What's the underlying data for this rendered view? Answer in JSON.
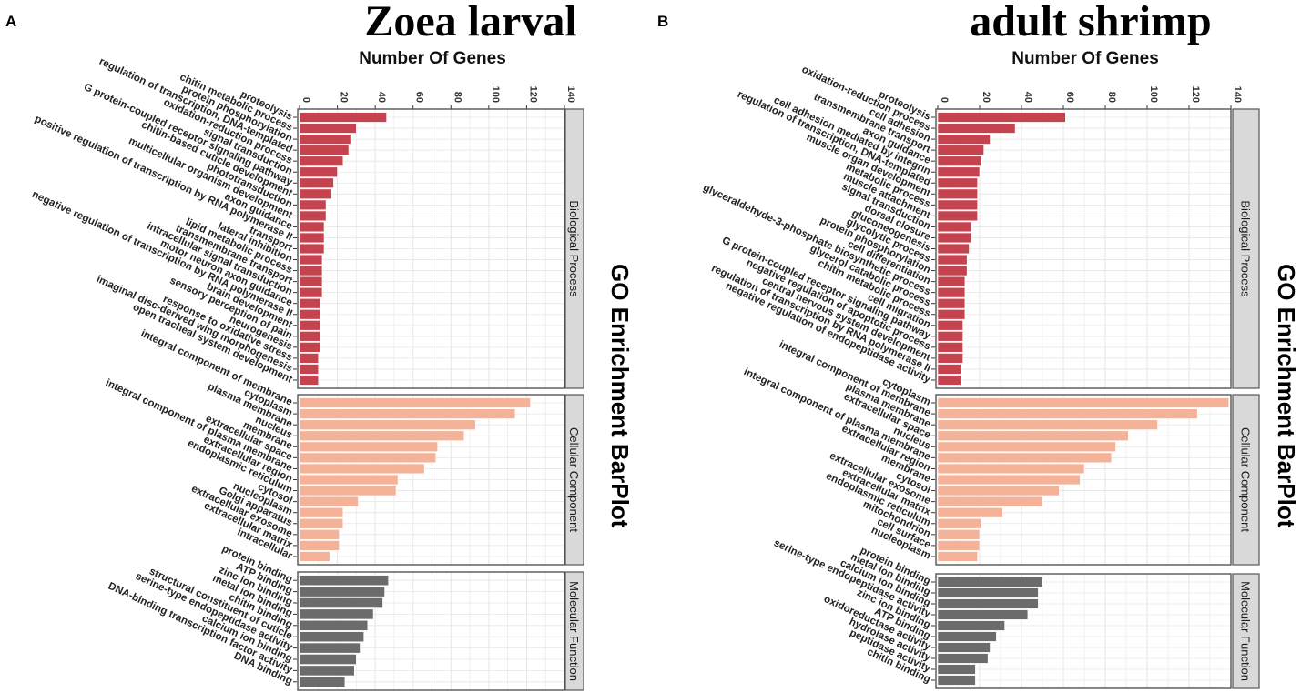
{
  "figure": {
    "side_title": "GO Enrichment BarPlot",
    "colors": {
      "biological_process": "#c5424f",
      "cellular_component": "#f4b398",
      "molecular_function": "#6b6b6b",
      "strip_fill": "#d9d9d9",
      "grid": "#e6e6e6"
    }
  },
  "chart_data": [
    {
      "type": "bar",
      "orientation": "horizontal",
      "panel_letter": "A",
      "title": "Zoea larval",
      "xlabel": "Number Of Genes",
      "xlim": [
        0,
        140
      ],
      "xticks": [
        "0",
        "20",
        "40",
        "60",
        "80",
        "100",
        "120",
        "140"
      ],
      "grid": true,
      "facets": [
        {
          "name": "Biological Process",
          "categories": [
            "proteolysis",
            "chitin metabolic process",
            "protein phosphorylation",
            "regulation of transcription, DNA-templated",
            "oxidation-reduction process",
            "signal transduction",
            "G protein-coupled receptor signaling pathway",
            "chitin-based cuticle development",
            "phototransduction",
            "multicellular organism development",
            "axon guidance",
            "positive regulation of transcription by RNA polymerase II",
            "transport",
            "lateral inhibition",
            "lipid metabolic process",
            "transmembrane transport",
            "intracellular signal transduction",
            "motor neuron axon guidance",
            "negative regulation of transcription by RNA polymerase II",
            "brain development",
            "sensory perception of pain",
            "neurogenesis",
            "response to oxidative stress",
            "imaginal disc-derived wing morphogenesis",
            "open tracheal system development"
          ],
          "values": [
            46,
            30,
            27,
            26,
            23,
            20,
            18,
            17,
            14,
            14,
            13,
            13,
            13,
            12,
            12,
            12,
            12,
            11,
            11,
            11,
            11,
            11,
            10,
            10,
            10
          ]
        },
        {
          "name": "Cellular Component",
          "categories": [
            "integral component of membrane",
            "cytoplasm",
            "plasma membrane",
            "nucleus",
            "membrane",
            "extracellular space",
            "integral component of plasma membrane",
            "extracellular region",
            "endoplasmic reticulum",
            "cytosol",
            "nucleoplasm",
            "Golgi apparatus",
            "extracellular exosome",
            "extracellular matrix",
            "intracellular"
          ],
          "values": [
            122,
            114,
            93,
            87,
            73,
            72,
            66,
            52,
            51,
            31,
            23,
            23,
            21,
            21,
            16
          ]
        },
        {
          "name": "Molecular Function",
          "categories": [
            "protein binding",
            "ATP binding",
            "zinc ion binding",
            "metal ion binding",
            "chitin binding",
            "structural constituent of cuticle",
            "serine-type endopeptidase activity",
            "calcium ion binding",
            "DNA-binding transcription factor activity",
            "DNA binding"
          ],
          "values": [
            47,
            45,
            44,
            39,
            36,
            34,
            32,
            30,
            29,
            24
          ]
        }
      ]
    },
    {
      "type": "bar",
      "orientation": "horizontal",
      "panel_letter": "B",
      "title": "adult shrimp",
      "xlabel": "Number Of Genes",
      "xlim": [
        0,
        140
      ],
      "xticks": [
        "0",
        "20",
        "40",
        "60",
        "80",
        "100",
        "120",
        "140"
      ],
      "grid": true,
      "facets": [
        {
          "name": "Biological Process",
          "categories": [
            "proteolysis",
            "oxidation-reduction process",
            "cell adhesion",
            "transmembrane transport",
            "axon guidance",
            "cell adhesion mediated by integrin",
            "regulation of transcription, DNA-templated",
            "muscle organ development",
            "metabolic process",
            "muscle attachment",
            "signal transduction",
            "dorsal closure",
            "gluconeogenesis",
            "glycolytic process",
            "protein phosphorylation",
            "cell differentiation",
            "glyceraldehyde-3-phosphate biosynthetic process",
            "glycerol catabolic process",
            "chitin metabolic process",
            "cell migration",
            "G protein-coupled receptor signaling pathway",
            "negative regulation of apoptotic process",
            "central nervous system development",
            "regulation of transcription by RNA polymerase II",
            "negative regulation of endopeptidase activity"
          ],
          "values": [
            61,
            37,
            25,
            22,
            21,
            20,
            19,
            19,
            19,
            19,
            16,
            16,
            15,
            14,
            14,
            13,
            13,
            13,
            13,
            12,
            12,
            12,
            12,
            11,
            11
          ]
        },
        {
          "name": "Cellular Component",
          "categories": [
            "cytoplasm",
            "integral component of membrane",
            "plasma membrane",
            "extracellular space",
            "nucleus",
            "integral component of plasma membrane",
            "extracellular region",
            "membrane",
            "cytosol",
            "extracellular exosome",
            "extracellular matrix",
            "endoplasmic reticulum",
            "mitochondrion",
            "cell surface",
            "nucleoplasm"
          ],
          "values": [
            139,
            124,
            105,
            91,
            85,
            83,
            70,
            68,
            58,
            50,
            31,
            21,
            20,
            20,
            19
          ]
        },
        {
          "name": "Molecular Function",
          "categories": [
            "protein binding",
            "metal ion binding",
            "calcium ion binding",
            "serine-type endopeptidase activity",
            "zinc ion binding",
            "ATP binding",
            "oxidoreductase activity",
            "hydrolase activity",
            "peptidase activity",
            "chitin binding"
          ],
          "values": [
            50,
            48,
            48,
            43,
            32,
            28,
            25,
            24,
            18,
            18
          ]
        }
      ]
    }
  ]
}
